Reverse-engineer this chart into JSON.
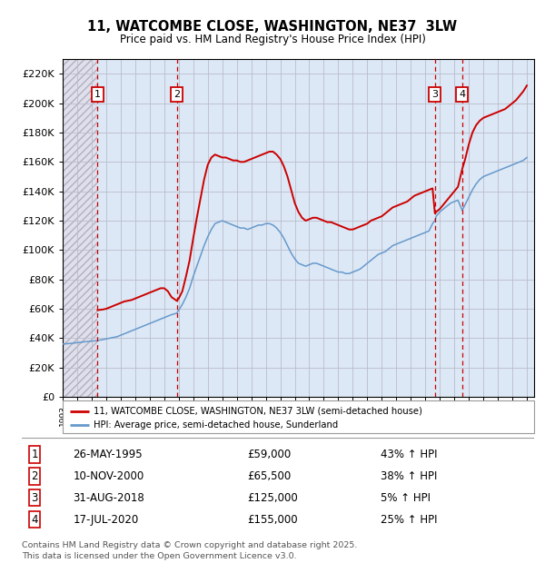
{
  "title": "11, WATCOMBE CLOSE, WASHINGTON, NE37  3LW",
  "subtitle": "Price paid vs. HM Land Registry's House Price Index (HPI)",
  "ylabel_ticks": [
    "£0",
    "£20K",
    "£40K",
    "£60K",
    "£80K",
    "£100K",
    "£120K",
    "£140K",
    "£160K",
    "£180K",
    "£200K",
    "£220K"
  ],
  "y_values": [
    0,
    20000,
    40000,
    60000,
    80000,
    100000,
    120000,
    140000,
    160000,
    180000,
    200000,
    220000
  ],
  "ylim": [
    0,
    230000
  ],
  "xlim_start": 1993.0,
  "xlim_end": 2025.5,
  "hatch_end_year": 1995.4,
  "sales": [
    {
      "num": 1,
      "date": "26-MAY-1995",
      "price": 59000,
      "year": 1995.41,
      "pct": "43%",
      "dir": "↑"
    },
    {
      "num": 2,
      "date": "10-NOV-2000",
      "price": 65500,
      "year": 2000.86,
      "pct": "38%",
      "dir": "↑"
    },
    {
      "num": 3,
      "date": "31-AUG-2018",
      "price": 125000,
      "year": 2018.66,
      "pct": "5%",
      "dir": "↑"
    },
    {
      "num": 4,
      "date": "17-JUL-2020",
      "price": 155000,
      "year": 2020.54,
      "pct": "25%",
      "dir": "↑"
    }
  ],
  "legend_property": "11, WATCOMBE CLOSE, WASHINGTON, NE37 3LW (semi-detached house)",
  "legend_hpi": "HPI: Average price, semi-detached house, Sunderland",
  "footnote": "Contains HM Land Registry data © Crown copyright and database right 2025.\nThis data is licensed under the Open Government Licence v3.0.",
  "property_line_color": "#cc0000",
  "hpi_line_color": "#6699cc",
  "marker_box_color": "#cc0000",
  "vline_color": "#cc0000",
  "property_years": [
    1995.41,
    1995.5,
    1995.75,
    1996.0,
    1996.25,
    1996.5,
    1996.75,
    1997.0,
    1997.25,
    1997.5,
    1997.75,
    1998.0,
    1998.25,
    1998.5,
    1998.75,
    1999.0,
    1999.25,
    1999.5,
    1999.75,
    2000.0,
    2000.25,
    2000.5,
    2000.86,
    2001.0,
    2001.25,
    2001.5,
    2001.75,
    2002.0,
    2002.25,
    2002.5,
    2002.75,
    2003.0,
    2003.25,
    2003.5,
    2003.75,
    2004.0,
    2004.25,
    2004.5,
    2004.75,
    2005.0,
    2005.25,
    2005.5,
    2005.75,
    2006.0,
    2006.25,
    2006.5,
    2006.75,
    2007.0,
    2007.25,
    2007.5,
    2007.75,
    2008.0,
    2008.25,
    2008.5,
    2008.75,
    2009.0,
    2009.25,
    2009.5,
    2009.75,
    2010.0,
    2010.25,
    2010.5,
    2010.75,
    2011.0,
    2011.25,
    2011.5,
    2011.75,
    2012.0,
    2012.25,
    2012.5,
    2012.75,
    2013.0,
    2013.25,
    2013.5,
    2013.75,
    2014.0,
    2014.25,
    2014.5,
    2014.75,
    2015.0,
    2015.25,
    2015.5,
    2015.75,
    2016.0,
    2016.25,
    2016.5,
    2016.75,
    2017.0,
    2017.25,
    2017.5,
    2017.75,
    2018.0,
    2018.25,
    2018.5,
    2018.66,
    2018.75,
    2019.0,
    2019.25,
    2019.5,
    2019.75,
    2020.0,
    2020.25,
    2020.54,
    2020.75,
    2021.0,
    2021.25,
    2021.5,
    2021.75,
    2022.0,
    2022.25,
    2022.5,
    2022.75,
    2023.0,
    2023.25,
    2023.5,
    2023.75,
    2024.0,
    2024.25,
    2024.5,
    2024.75,
    2025.0
  ],
  "property_prices": [
    59000,
    59200,
    59500,
    60000,
    61000,
    62000,
    63000,
    64000,
    65000,
    65500,
    66000,
    67000,
    68000,
    69000,
    70000,
    71000,
    72000,
    73000,
    74000,
    74000,
    72000,
    68000,
    65500,
    67000,
    72000,
    82000,
    93000,
    108000,
    122000,
    135000,
    148000,
    158000,
    163000,
    165000,
    164000,
    163000,
    163000,
    162000,
    161000,
    161000,
    160000,
    160000,
    161000,
    162000,
    163000,
    164000,
    165000,
    166000,
    167000,
    167000,
    165000,
    162000,
    157000,
    150000,
    141000,
    132000,
    126000,
    122000,
    120000,
    121000,
    122000,
    122000,
    121000,
    120000,
    119000,
    119000,
    118000,
    117000,
    116000,
    115000,
    114000,
    114000,
    115000,
    116000,
    117000,
    118000,
    120000,
    121000,
    122000,
    123000,
    125000,
    127000,
    129000,
    130000,
    131000,
    132000,
    133000,
    135000,
    137000,
    138000,
    139000,
    140000,
    141000,
    142000,
    125000,
    126000,
    128000,
    131000,
    134000,
    137000,
    140000,
    143000,
    155000,
    162000,
    172000,
    180000,
    185000,
    188000,
    190000,
    191000,
    192000,
    193000,
    194000,
    195000,
    196000,
    198000,
    200000,
    202000,
    205000,
    208000,
    212000
  ],
  "hpi_years": [
    1993.0,
    1993.25,
    1993.5,
    1993.75,
    1994.0,
    1994.25,
    1994.5,
    1994.75,
    1995.0,
    1995.25,
    1995.41,
    1995.5,
    1995.75,
    1996.0,
    1996.25,
    1996.5,
    1996.75,
    1997.0,
    1997.25,
    1997.5,
    1997.75,
    1998.0,
    1998.25,
    1998.5,
    1998.75,
    1999.0,
    1999.25,
    1999.5,
    1999.75,
    2000.0,
    2000.25,
    2000.5,
    2000.86,
    2001.0,
    2001.25,
    2001.5,
    2001.75,
    2002.0,
    2002.25,
    2002.5,
    2002.75,
    2003.0,
    2003.25,
    2003.5,
    2003.75,
    2004.0,
    2004.25,
    2004.5,
    2004.75,
    2005.0,
    2005.25,
    2005.5,
    2005.75,
    2006.0,
    2006.25,
    2006.5,
    2006.75,
    2007.0,
    2007.25,
    2007.5,
    2007.75,
    2008.0,
    2008.25,
    2008.5,
    2008.75,
    2009.0,
    2009.25,
    2009.5,
    2009.75,
    2010.0,
    2010.25,
    2010.5,
    2010.75,
    2011.0,
    2011.25,
    2011.5,
    2011.75,
    2012.0,
    2012.25,
    2012.5,
    2012.75,
    2013.0,
    2013.25,
    2013.5,
    2013.75,
    2014.0,
    2014.25,
    2014.5,
    2014.75,
    2015.0,
    2015.25,
    2015.5,
    2015.75,
    2016.0,
    2016.25,
    2016.5,
    2016.75,
    2017.0,
    2017.25,
    2017.5,
    2017.75,
    2018.0,
    2018.25,
    2018.5,
    2018.66,
    2018.75,
    2019.0,
    2019.25,
    2019.5,
    2019.75,
    2020.0,
    2020.25,
    2020.54,
    2020.75,
    2021.0,
    2021.25,
    2021.5,
    2021.75,
    2022.0,
    2022.25,
    2022.5,
    2022.75,
    2023.0,
    2023.25,
    2023.5,
    2023.75,
    2024.0,
    2024.25,
    2024.5,
    2024.75,
    2025.0
  ],
  "hpi_prices": [
    36000,
    36200,
    36400,
    36600,
    37000,
    37200,
    37500,
    37800,
    38000,
    38200,
    38400,
    38600,
    39000,
    39500,
    40000,
    40500,
    41000,
    42000,
    43000,
    44000,
    45000,
    46000,
    47000,
    48000,
    49000,
    50000,
    51000,
    52000,
    53000,
    54000,
    55000,
    56000,
    57000,
    59000,
    63000,
    68000,
    74000,
    82000,
    89000,
    96000,
    103000,
    109000,
    114000,
    118000,
    119000,
    120000,
    119000,
    118000,
    117000,
    116000,
    115000,
    115000,
    114000,
    115000,
    116000,
    117000,
    117000,
    118000,
    118000,
    117000,
    115000,
    112000,
    108000,
    103000,
    98000,
    94000,
    91000,
    90000,
    89000,
    90000,
    91000,
    91000,
    90000,
    89000,
    88000,
    87000,
    86000,
    85000,
    85000,
    84000,
    84000,
    85000,
    86000,
    87000,
    89000,
    91000,
    93000,
    95000,
    97000,
    98000,
    99000,
    101000,
    103000,
    104000,
    105000,
    106000,
    107000,
    108000,
    109000,
    110000,
    111000,
    112000,
    113000,
    118000,
    120000,
    123000,
    126000,
    128000,
    130000,
    132000,
    133000,
    134000,
    127000,
    131000,
    136000,
    141000,
    145000,
    148000,
    150000,
    151000,
    152000,
    153000,
    154000,
    155000,
    156000,
    157000,
    158000,
    159000,
    160000,
    161000,
    163000
  ]
}
